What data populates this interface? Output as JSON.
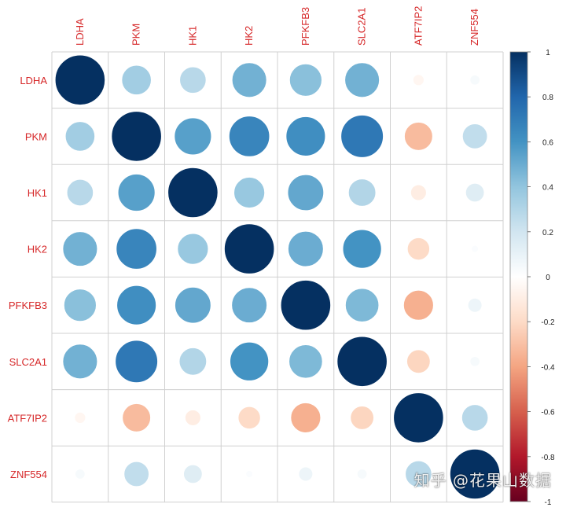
{
  "chart_data": {
    "type": "heatmap",
    "variables": [
      "LDHA",
      "PKM",
      "HK1",
      "HK2",
      "PFKFB3",
      "SLC2A1",
      "ATF7IP2",
      "ZNF554"
    ],
    "matrix": [
      [
        1.0,
        0.35,
        0.28,
        0.48,
        0.42,
        0.48,
        -0.05,
        0.04
      ],
      [
        0.35,
        1.0,
        0.55,
        0.66,
        0.62,
        0.72,
        -0.32,
        0.25
      ],
      [
        0.28,
        0.55,
        1.0,
        0.38,
        0.52,
        0.3,
        -0.1,
        0.14
      ],
      [
        0.48,
        0.66,
        0.38,
        1.0,
        0.5,
        0.6,
        -0.2,
        0.02
      ],
      [
        0.42,
        0.62,
        0.52,
        0.5,
        1.0,
        0.45,
        -0.36,
        0.08
      ],
      [
        0.48,
        0.72,
        0.3,
        0.6,
        0.45,
        1.0,
        -0.22,
        0.04
      ],
      [
        -0.05,
        -0.32,
        -0.1,
        -0.2,
        -0.36,
        -0.22,
        1.0,
        0.28
      ],
      [
        0.04,
        0.25,
        0.14,
        0.02,
        0.08,
        0.04,
        0.28,
        1.0
      ]
    ],
    "color_scale": {
      "min": -1,
      "max": 1,
      "ticks": [
        "1",
        "0.8",
        "0.6",
        "0.4",
        "0.2",
        "0",
        "-0.2",
        "-0.4",
        "-0.6",
        "-0.8",
        "-1"
      ],
      "stops": [
        "#67001F",
        "#B2182B",
        "#D6604D",
        "#F4A582",
        "#FDDBC7",
        "#FFFFFF",
        "#D1E5F0",
        "#92C5DE",
        "#4393C3",
        "#2166AC",
        "#053061"
      ]
    },
    "label_color": "#D62728"
  },
  "watermark": "知乎 @花果山数据"
}
